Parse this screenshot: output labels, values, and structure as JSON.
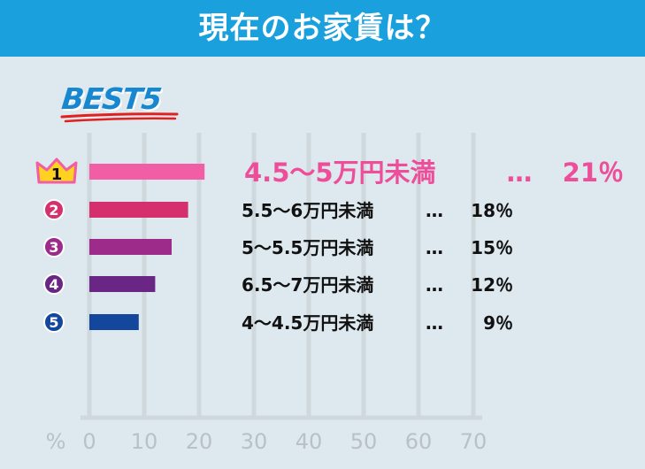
{
  "header": {
    "title": "現在のお家賃は？"
  },
  "badge": {
    "text": "BEST5"
  },
  "colors": {
    "header_bg": "#1aa1dd",
    "background": "#dde9ee",
    "gridline": "#cfd8dc",
    "axis_text": "#b9c1c5",
    "highlight_text": "#ee4d9a",
    "crown": "#ffd21f",
    "underline": "#e2201f"
  },
  "chart_data": {
    "type": "bar",
    "orientation": "horizontal",
    "unit": "%",
    "x_ticks": [
      "0",
      "10",
      "20",
      "30",
      "40",
      "50",
      "60",
      "70"
    ],
    "xlim": [
      0,
      70
    ],
    "grid": true,
    "categories": [
      "4.5〜5万円未満",
      "5.5〜6万円未満",
      "5〜5.5万円未満",
      "6.5〜7万円未満",
      "4〜4.5万円未満"
    ],
    "values": [
      21,
      18,
      15,
      12,
      9
    ],
    "value_labels": [
      "21％",
      "18％",
      "15％",
      "12％",
      "9％"
    ],
    "ranks": [
      "1",
      "2",
      "3",
      "4",
      "5"
    ],
    "separator": "…",
    "bar_colors": [
      "#f15ea5",
      "#d62f6d",
      "#9c2b8a",
      "#692685",
      "#13479e"
    ]
  }
}
